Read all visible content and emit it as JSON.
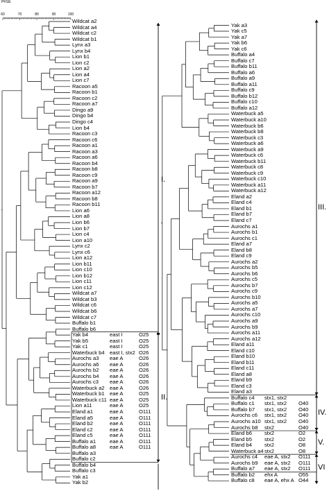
{
  "title": "PFGE",
  "scale": {
    "ticks": [
      "60",
      "70",
      "80",
      "90",
      "100"
    ]
  },
  "left": [
    {
      "name": "Wildcat a2"
    },
    {
      "name": "Wildcat a4"
    },
    {
      "name": "Wildcat c2"
    },
    {
      "name": "Wildcat b1"
    },
    {
      "name": "Lynx a3"
    },
    {
      "name": "Lynx b4"
    },
    {
      "name": "Lion b1"
    },
    {
      "name": "Lion c2"
    },
    {
      "name": "Lion a2"
    },
    {
      "name": "Lion a4"
    },
    {
      "name": "Lion c7"
    },
    {
      "name": "Racoon a5"
    },
    {
      "name": "Racoon b1"
    },
    {
      "name": "Racoon c2"
    },
    {
      "name": "Racoon a7"
    },
    {
      "name": "Dingo a9"
    },
    {
      "name": "Dingo b4"
    },
    {
      "name": "Dingo c4"
    },
    {
      "name": "Lion b4"
    },
    {
      "name": "Racoon c3"
    },
    {
      "name": "Racoon c6"
    },
    {
      "name": "Racoon a1"
    },
    {
      "name": "Racoon a3"
    },
    {
      "name": "Racoon a6"
    },
    {
      "name": "Racoon b4"
    },
    {
      "name": "Racoon b8"
    },
    {
      "name": "Racoon c9"
    },
    {
      "name": "Racoon a9"
    },
    {
      "name": "Racoon b7"
    },
    {
      "name": "Racoon a12"
    },
    {
      "name": "Racoon b8"
    },
    {
      "name": "Racoon b11"
    },
    {
      "name": "Lion a6"
    },
    {
      "name": "Lion a8"
    },
    {
      "name": "Lion b6"
    },
    {
      "name": "Lion b7"
    },
    {
      "name": "Lion c4"
    },
    {
      "name": "Lion a10"
    },
    {
      "name": "Lynx c2"
    },
    {
      "name": "Lynx c6"
    },
    {
      "name": "Lion a12"
    },
    {
      "name": "Lion b11"
    },
    {
      "name": "Lion c10"
    },
    {
      "name": "Lion b12"
    },
    {
      "name": "Lion c11"
    },
    {
      "name": "Lion c12"
    },
    {
      "name": "Wildcat a7"
    },
    {
      "name": "Wildcat b3"
    },
    {
      "name": "Wildcat c6"
    },
    {
      "name": "Wildcat b6"
    },
    {
      "name": "Wildcat c7"
    },
    {
      "name": "Buffalo b1"
    },
    {
      "name": "Buffalo b6"
    },
    {
      "name": "Yak b4",
      "gene": "east I",
      "sero": "O25"
    },
    {
      "name": "Yak b5",
      "gene": "east I",
      "sero": "O25"
    },
    {
      "name": "Yak c1",
      "gene": "east I",
      "sero": "O25"
    },
    {
      "name": "Waterbuck b4",
      "gene": "east I, stx2",
      "sero": "O26"
    },
    {
      "name": "Aurochs a3",
      "gene": "eae A",
      "sero": "O26"
    },
    {
      "name": "Aurochs a6",
      "gene": "eae A",
      "sero": "O26"
    },
    {
      "name": "Aurochs b2",
      "gene": "eae A",
      "sero": "O26"
    },
    {
      "name": "Aurochs b4",
      "gene": "eae A",
      "sero": "O26"
    },
    {
      "name": "Aurochs c3",
      "gene": "eae A",
      "sero": "O26"
    },
    {
      "name": "Waterbuck a2",
      "gene": "eae A",
      "sero": "O26"
    },
    {
      "name": "Waterbuck b1",
      "gene": "eae A",
      "sero": "O25"
    },
    {
      "name": "Waterbuck c11",
      "gene": "eae A",
      "sero": "O25"
    },
    {
      "name": "Lion a11",
      "gene": "eae A",
      "sero": "O25"
    },
    {
      "name": "Eland a1",
      "gene": "eae A",
      "sero": "O111"
    },
    {
      "name": "Eland a5",
      "gene": "eae A",
      "sero": "O111"
    },
    {
      "name": "Eland b2",
      "gene": "eae A",
      "sero": "O111"
    },
    {
      "name": "Eland c2",
      "gene": "eae A",
      "sero": "O111"
    },
    {
      "name": "Eland c5",
      "gene": "eae A",
      "sero": "O111"
    },
    {
      "name": "Buffalo a1",
      "gene": "eae A",
      "sero": "O111"
    },
    {
      "name": "Buffalo a8",
      "gene": "eae A",
      "sero": "O111"
    },
    {
      "name": "Buffalo a3"
    },
    {
      "name": "Buffalo c2"
    },
    {
      "name": "Buffalo b4"
    },
    {
      "name": "Buffalo c3"
    },
    {
      "name": "Yak a1"
    },
    {
      "name": "Yak b2"
    }
  ],
  "right": [
    {
      "name": "Yak a3"
    },
    {
      "name": "Yak c5"
    },
    {
      "name": "Yak a7"
    },
    {
      "name": "Yak b6"
    },
    {
      "name": "Yak c6"
    },
    {
      "name": "Buffalo a4"
    },
    {
      "name": "Buffalo c7"
    },
    {
      "name": "Buffalo b11"
    },
    {
      "name": "Buffalo a6"
    },
    {
      "name": "Buffalo a9"
    },
    {
      "name": "Buffalo a11"
    },
    {
      "name": "Buffalo c9"
    },
    {
      "name": "Buffalo b12"
    },
    {
      "name": "Buffalo c10"
    },
    {
      "name": "Buffalo a12"
    },
    {
      "name": "Waterbuck a5"
    },
    {
      "name": "Waterbuck a10"
    },
    {
      "name": "Waterbuck b6"
    },
    {
      "name": "Waterbuck b8"
    },
    {
      "name": "Waterbuck c3"
    },
    {
      "name": "Waterbuck a6"
    },
    {
      "name": "Waterbuck a9"
    },
    {
      "name": "Waterbuck c6"
    },
    {
      "name": "Waterbuck b11"
    },
    {
      "name": "Waterbuck c8"
    },
    {
      "name": "Waterbuck c9"
    },
    {
      "name": "Waterbuck c10"
    },
    {
      "name": "Waterbuck a11"
    },
    {
      "name": "Waterbuck a12"
    },
    {
      "name": "Eland a2"
    },
    {
      "name": "Eland c4"
    },
    {
      "name": "Eland b1"
    },
    {
      "name": "Eland b7"
    },
    {
      "name": "Eland c7"
    },
    {
      "name": "Aurochs a1"
    },
    {
      "name": "Aurochs b1"
    },
    {
      "name": "Aurochs c1"
    },
    {
      "name": "Eland a7"
    },
    {
      "name": "Eland b8"
    },
    {
      "name": "Eland c9"
    },
    {
      "name": "Aurochs a2"
    },
    {
      "name": "Aurochs b5"
    },
    {
      "name": "Aurochs b6"
    },
    {
      "name": "Aurochs c5"
    },
    {
      "name": "Aurochs b7"
    },
    {
      "name": "Aurochs c9"
    },
    {
      "name": "Aurochs b10"
    },
    {
      "name": "Aurochs a5"
    },
    {
      "name": "Aurochs a7"
    },
    {
      "name": "Aurochs c10"
    },
    {
      "name": "Aurochs a9"
    },
    {
      "name": "Aurochs b9"
    },
    {
      "name": "Aurochs a11"
    },
    {
      "name": "Aurochs a12"
    },
    {
      "name": "Eland a11"
    },
    {
      "name": "Eland c10"
    },
    {
      "name": "Eland b10"
    },
    {
      "name": "Eland b11"
    },
    {
      "name": "Eland c11"
    },
    {
      "name": "Eland a8"
    },
    {
      "name": "Eland b9"
    },
    {
      "name": "Eland c3"
    },
    {
      "name": "Eland a3"
    },
    {
      "name": "Buffalo c4",
      "gene": "stx1, stx2",
      "sero": ""
    },
    {
      "name": "Buffalo c1",
      "gene": "stx1, stx2",
      "sero": "O40"
    },
    {
      "name": "Buffalo b7",
      "gene": "stx1, stx2",
      "sero": "O40"
    },
    {
      "name": "Aurochs c6",
      "gene": "stx1, stx2",
      "sero": "O40"
    },
    {
      "name": "Aurochs a10",
      "gene": "stx1, stx2",
      "sero": "O40"
    },
    {
      "name": "Aurochs b8",
      "gene": "stx2",
      "sero": "O40"
    },
    {
      "name": "Eland b6",
      "gene": "stx2",
      "sero": "O2"
    },
    {
      "name": "Eland b5",
      "gene": "stx2",
      "sero": "O2"
    },
    {
      "name": "Eland b4",
      "gene": "stx2",
      "sero": "O8"
    },
    {
      "name": "Waterbuck a4",
      "gene": "stx2",
      "sero": "O8"
    },
    {
      "name": "Aurochs c4",
      "gene": "eae A, stx2",
      "sero": "O111"
    },
    {
      "name": "Aurochs b9",
      "gene": "eae A, stx2",
      "sero": "O111"
    },
    {
      "name": "Buffalo a7",
      "gene": "eae A, stx2",
      "sero": "O111"
    },
    {
      "name": "Buffalo b2",
      "gene": "ehx A",
      "sero": "O55"
    },
    {
      "name": "Buffalo c8",
      "gene": "eae A, ehx A",
      "sero": "O44"
    }
  ],
  "clusters": [
    "I.",
    "II.",
    "III.",
    "IV.",
    "V.",
    "VI"
  ]
}
